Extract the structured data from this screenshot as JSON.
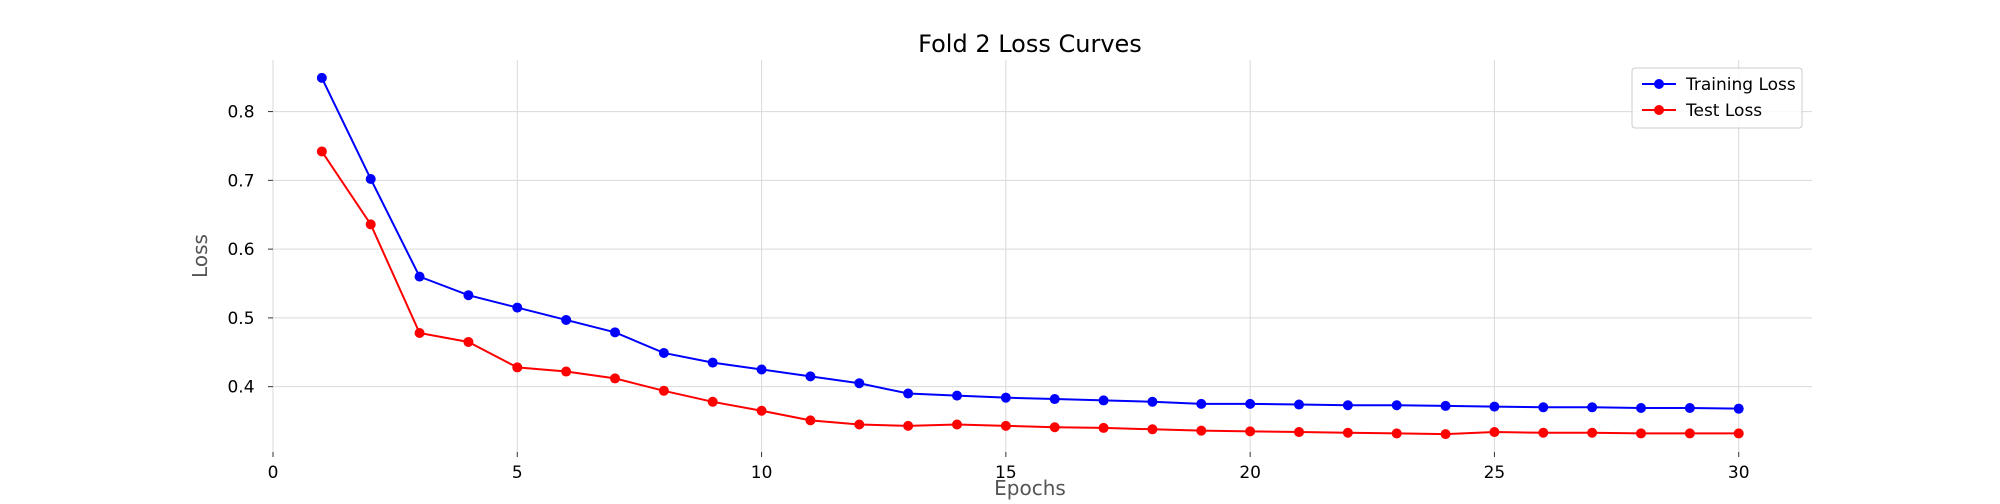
{
  "chart_data": {
    "type": "line",
    "title": "Fold 2 Loss Curves",
    "xlabel": "Epochs",
    "ylabel": "Loss",
    "xlim": [
      0,
      31.5
    ],
    "ylim": [
      0.305,
      0.875
    ],
    "xticks": [
      0,
      5,
      10,
      15,
      20,
      25,
      30
    ],
    "yticks": [
      0.4,
      0.5,
      0.6,
      0.7,
      0.8
    ],
    "grid": true,
    "legend_position": "top-right",
    "x": [
      1,
      2,
      3,
      4,
      5,
      6,
      7,
      8,
      9,
      10,
      11,
      12,
      13,
      14,
      15,
      16,
      17,
      18,
      19,
      20,
      21,
      22,
      23,
      24,
      25,
      26,
      27,
      28,
      29,
      30
    ],
    "series": [
      {
        "name": "Training Loss",
        "color": "#0000ff",
        "values": [
          0.849,
          0.702,
          0.56,
          0.533,
          0.515,
          0.497,
          0.479,
          0.449,
          0.435,
          0.425,
          0.415,
          0.405,
          0.39,
          0.387,
          0.384,
          0.382,
          0.38,
          0.378,
          0.375,
          0.375,
          0.374,
          0.373,
          0.373,
          0.372,
          0.371,
          0.37,
          0.37,
          0.369,
          0.369,
          0.368
        ]
      },
      {
        "name": "Test Loss",
        "color": "#ff0000",
        "values": [
          0.742,
          0.636,
          0.478,
          0.465,
          0.428,
          0.422,
          0.412,
          0.394,
          0.378,
          0.365,
          0.351,
          0.345,
          0.343,
          0.345,
          0.343,
          0.341,
          0.34,
          0.338,
          0.336,
          0.335,
          0.334,
          0.333,
          0.332,
          0.331,
          0.334,
          0.333,
          0.333,
          0.332,
          0.332,
          0.332
        ]
      }
    ]
  }
}
